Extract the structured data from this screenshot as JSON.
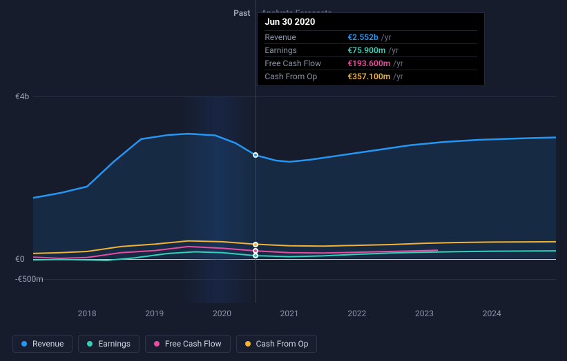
{
  "chart": {
    "type": "line",
    "background_color": "#161c2c",
    "grid_color": "#2a3145",
    "zero_line_color": "#cbd0dc",
    "label_color": "#8a93a5",
    "label_fontsize": 12,
    "y_axis": {
      "ticks": [
        {
          "value": 4000,
          "label": "€4b"
        },
        {
          "value": 0,
          "label": "€0"
        },
        {
          "value": -500,
          "label": "-€500m"
        }
      ],
      "min": -500,
      "max": 4000
    },
    "x_axis": {
      "min": 2017.2,
      "max": 2024.95,
      "ticks": [
        2018,
        2019,
        2020,
        2021,
        2022,
        2023,
        2024
      ]
    },
    "sections": {
      "divider_x": 2020.5,
      "past_label": "Past",
      "forecast_label": "Analysts Forecasts",
      "highlight_band": {
        "from": 2019.4,
        "to": 2020.5
      }
    },
    "series": [
      {
        "id": "revenue",
        "label": "Revenue",
        "color": "#2596f2",
        "width": 2.5,
        "area_fill": true,
        "points": [
          [
            2017.2,
            1500
          ],
          [
            2017.6,
            1620
          ],
          [
            2018.0,
            1780
          ],
          [
            2018.4,
            2400
          ],
          [
            2018.8,
            2950
          ],
          [
            2019.2,
            3050
          ],
          [
            2019.5,
            3080
          ],
          [
            2019.9,
            3040
          ],
          [
            2020.2,
            2850
          ],
          [
            2020.5,
            2552
          ],
          [
            2020.8,
            2420
          ],
          [
            2021.0,
            2390
          ],
          [
            2021.3,
            2440
          ],
          [
            2021.8,
            2560
          ],
          [
            2022.3,
            2680
          ],
          [
            2022.8,
            2800
          ],
          [
            2023.3,
            2880
          ],
          [
            2023.8,
            2930
          ],
          [
            2024.3,
            2960
          ],
          [
            2024.95,
            2990
          ]
        ]
      },
      {
        "id": "cash_from_op",
        "label": "Cash From Op",
        "color": "#f2b233",
        "width": 2,
        "points": [
          [
            2017.2,
            130
          ],
          [
            2017.6,
            150
          ],
          [
            2018.0,
            180
          ],
          [
            2018.5,
            300
          ],
          [
            2019.0,
            360
          ],
          [
            2019.5,
            440
          ],
          [
            2020.0,
            420
          ],
          [
            2020.5,
            357
          ],
          [
            2021.0,
            320
          ],
          [
            2021.5,
            310
          ],
          [
            2022.0,
            330
          ],
          [
            2022.5,
            350
          ],
          [
            2023.0,
            380
          ],
          [
            2023.5,
            400
          ],
          [
            2024.0,
            410
          ],
          [
            2024.95,
            420
          ]
        ]
      },
      {
        "id": "free_cash_flow",
        "label": "Free Cash Flow",
        "color": "#e84ca0",
        "width": 2,
        "points": [
          [
            2017.2,
            40
          ],
          [
            2017.6,
            10
          ],
          [
            2018.0,
            30
          ],
          [
            2018.5,
            150
          ],
          [
            2019.0,
            200
          ],
          [
            2019.5,
            300
          ],
          [
            2020.0,
            260
          ],
          [
            2020.5,
            194
          ],
          [
            2021.0,
            150
          ],
          [
            2021.5,
            140
          ],
          [
            2022.0,
            160
          ],
          [
            2022.5,
            180
          ],
          [
            2023.0,
            200
          ],
          [
            2023.2,
            210
          ]
        ]
      },
      {
        "id": "earnings",
        "label": "Earnings",
        "color": "#35d0ba",
        "width": 2,
        "points": [
          [
            2017.2,
            -30
          ],
          [
            2017.6,
            -20
          ],
          [
            2018.0,
            -30
          ],
          [
            2018.3,
            -40
          ],
          [
            2018.7,
            20
          ],
          [
            2019.2,
            130
          ],
          [
            2019.6,
            170
          ],
          [
            2020.0,
            150
          ],
          [
            2020.5,
            76
          ],
          [
            2021.0,
            50
          ],
          [
            2021.5,
            70
          ],
          [
            2022.0,
            110
          ],
          [
            2022.5,
            140
          ],
          [
            2023.0,
            160
          ],
          [
            2023.5,
            175
          ],
          [
            2024.0,
            185
          ],
          [
            2024.95,
            195
          ]
        ]
      }
    ],
    "tooltip": {
      "x": 2020.5,
      "date": "Jun 30 2020",
      "unit": "/yr",
      "rows": [
        {
          "label": "Revenue",
          "value": "€2.552b",
          "color": "#2596f2"
        },
        {
          "label": "Earnings",
          "value": "€75.900m",
          "color": "#35d0ba"
        },
        {
          "label": "Free Cash Flow",
          "value": "€193.600m",
          "color": "#e84ca0"
        },
        {
          "label": "Cash From Op",
          "value": "€357.100m",
          "color": "#f2b233"
        }
      ],
      "markers": [
        {
          "series": "revenue",
          "y": 2552,
          "color": "#2596f2"
        },
        {
          "series": "cash_from_op",
          "y": 357,
          "color": "#f2b233"
        },
        {
          "series": "free_cash_flow",
          "y": 194,
          "color": "#e84ca0"
        },
        {
          "series": "earnings",
          "y": 76,
          "color": "#35d0ba"
        }
      ]
    },
    "legend": [
      {
        "id": "revenue",
        "label": "Revenue",
        "color": "#2596f2"
      },
      {
        "id": "earnings",
        "label": "Earnings",
        "color": "#35d0ba"
      },
      {
        "id": "free_cash_flow",
        "label": "Free Cash Flow",
        "color": "#e84ca0"
      },
      {
        "id": "cash_from_op",
        "label": "Cash From Op",
        "color": "#f2b233"
      }
    ]
  }
}
